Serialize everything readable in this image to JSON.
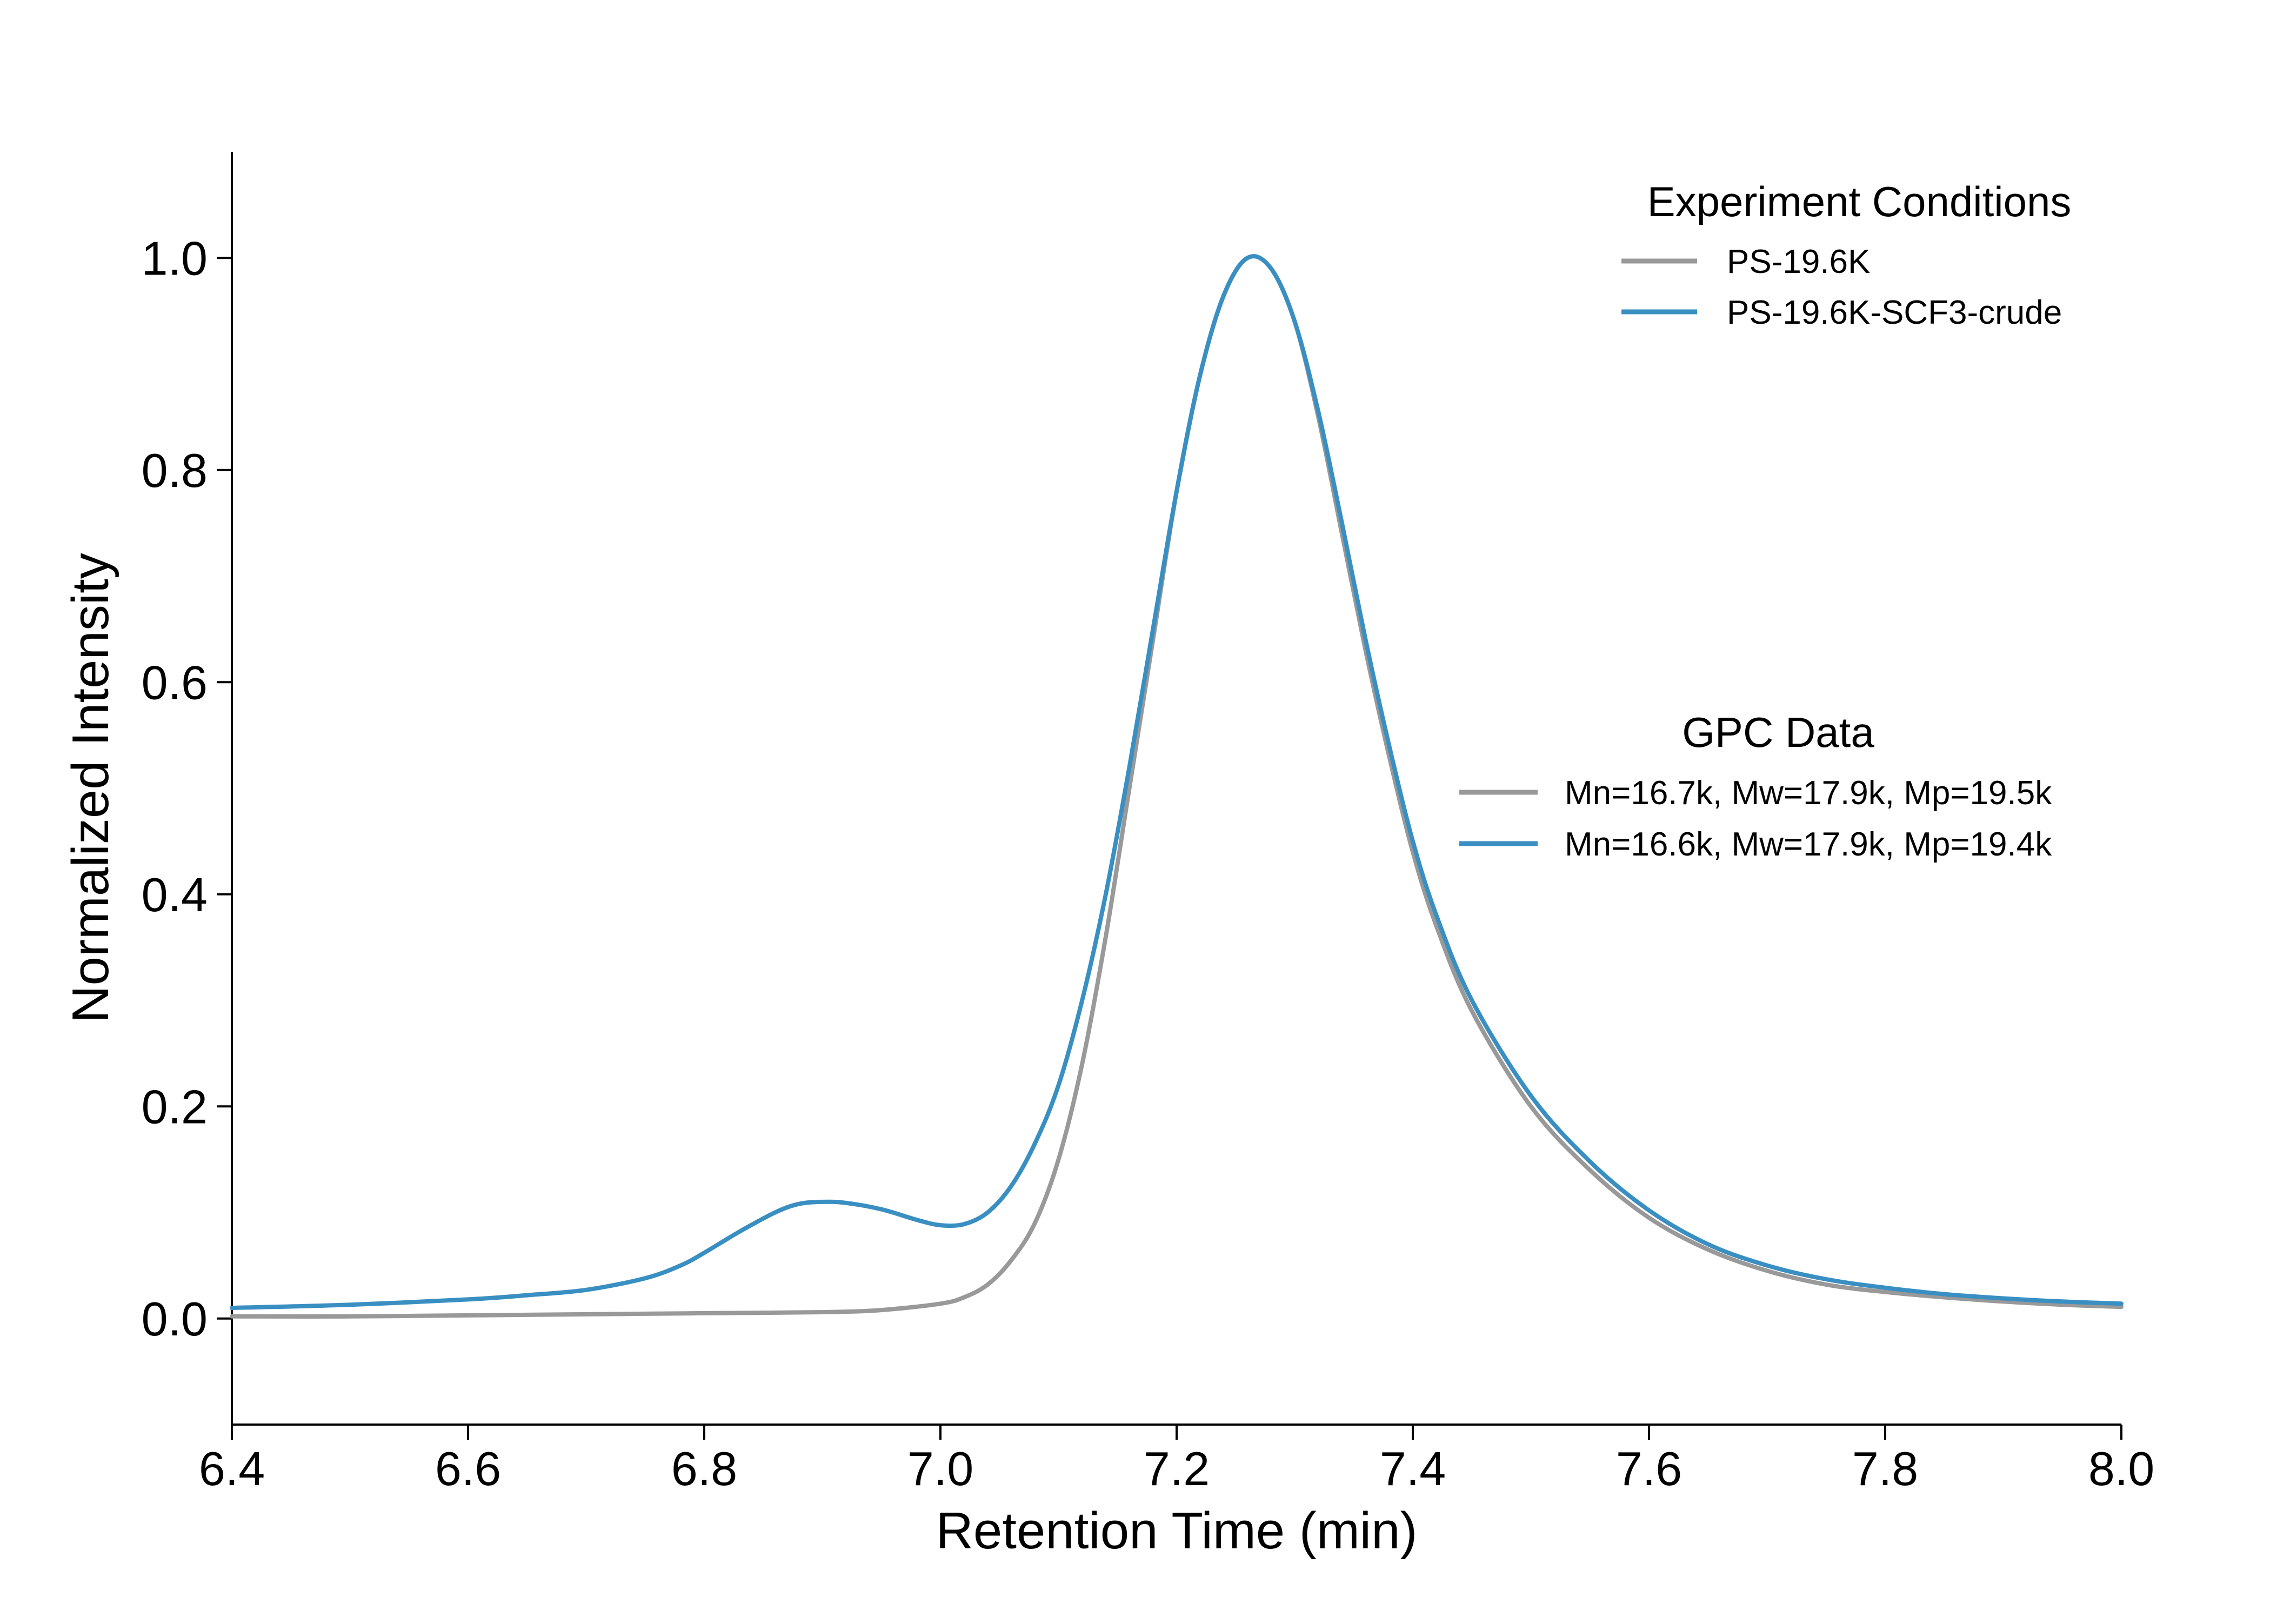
{
  "chart_data": {
    "type": "line",
    "title": "",
    "xlabel": "Retention Time (min)",
    "ylabel": "Normalized Intensity",
    "xlim": [
      6.4,
      8.0
    ],
    "ylim": [
      -0.1,
      1.1
    ],
    "grid": false,
    "x_ticks": [
      {
        "value": 6.4,
        "label": "6.4"
      },
      {
        "value": 6.6,
        "label": "6.6"
      },
      {
        "value": 6.8,
        "label": "6.8"
      },
      {
        "value": 7.0,
        "label": "7.0"
      },
      {
        "value": 7.2,
        "label": "7.2"
      },
      {
        "value": 7.4,
        "label": "7.4"
      },
      {
        "value": 7.6,
        "label": "7.6"
      },
      {
        "value": 7.8,
        "label": "7.8"
      },
      {
        "value": 8.0,
        "label": "8.0"
      }
    ],
    "y_ticks": [
      {
        "value": 0.0,
        "label": "0.0"
      },
      {
        "value": 0.2,
        "label": "0.2"
      },
      {
        "value": 0.4,
        "label": "0.4"
      },
      {
        "value": 0.6,
        "label": "0.6"
      },
      {
        "value": 0.8,
        "label": "0.8"
      },
      {
        "value": 1.0,
        "label": "1.0"
      }
    ],
    "series": [
      {
        "name": "PS-19.6K",
        "color": "#999999",
        "points": [
          [
            6.4,
            0.002
          ],
          [
            6.5,
            0.002
          ],
          [
            6.6,
            0.003
          ],
          [
            6.7,
            0.004
          ],
          [
            6.8,
            0.005
          ],
          [
            6.9,
            0.006
          ],
          [
            6.95,
            0.008
          ],
          [
            7.0,
            0.014
          ],
          [
            7.02,
            0.02
          ],
          [
            7.04,
            0.032
          ],
          [
            7.06,
            0.055
          ],
          [
            7.08,
            0.09
          ],
          [
            7.1,
            0.15
          ],
          [
            7.12,
            0.24
          ],
          [
            7.14,
            0.36
          ],
          [
            7.16,
            0.5
          ],
          [
            7.18,
            0.64
          ],
          [
            7.2,
            0.78
          ],
          [
            7.22,
            0.89
          ],
          [
            7.24,
            0.965
          ],
          [
            7.26,
            1.0
          ],
          [
            7.28,
            0.99
          ],
          [
            7.3,
            0.94
          ],
          [
            7.32,
            0.85
          ],
          [
            7.34,
            0.74
          ],
          [
            7.36,
            0.63
          ],
          [
            7.38,
            0.53
          ],
          [
            7.4,
            0.44
          ],
          [
            7.42,
            0.37
          ],
          [
            7.45,
            0.29
          ],
          [
            7.5,
            0.2
          ],
          [
            7.55,
            0.14
          ],
          [
            7.6,
            0.095
          ],
          [
            7.65,
            0.065
          ],
          [
            7.7,
            0.045
          ],
          [
            7.75,
            0.032
          ],
          [
            7.8,
            0.025
          ],
          [
            7.85,
            0.02
          ],
          [
            7.9,
            0.016
          ],
          [
            7.95,
            0.013
          ],
          [
            8.0,
            0.011
          ]
        ]
      },
      {
        "name": "PS-19.6K-SCF3-crude",
        "color": "#3a8fc2",
        "points": [
          [
            6.4,
            0.01
          ],
          [
            6.5,
            0.013
          ],
          [
            6.6,
            0.018
          ],
          [
            6.65,
            0.022
          ],
          [
            6.7,
            0.027
          ],
          [
            6.75,
            0.038
          ],
          [
            6.78,
            0.05
          ],
          [
            6.8,
            0.062
          ],
          [
            6.83,
            0.082
          ],
          [
            6.86,
            0.1
          ],
          [
            6.88,
            0.108
          ],
          [
            6.9,
            0.11
          ],
          [
            6.92,
            0.109
          ],
          [
            6.95,
            0.103
          ],
          [
            6.98,
            0.093
          ],
          [
            7.0,
            0.088
          ],
          [
            7.02,
            0.089
          ],
          [
            7.04,
            0.1
          ],
          [
            7.06,
            0.125
          ],
          [
            7.08,
            0.165
          ],
          [
            7.1,
            0.22
          ],
          [
            7.12,
            0.3
          ],
          [
            7.14,
            0.4
          ],
          [
            7.16,
            0.52
          ],
          [
            7.18,
            0.65
          ],
          [
            7.2,
            0.78
          ],
          [
            7.22,
            0.89
          ],
          [
            7.24,
            0.965
          ],
          [
            7.26,
            1.0
          ],
          [
            7.28,
            0.99
          ],
          [
            7.3,
            0.94
          ],
          [
            7.32,
            0.855
          ],
          [
            7.34,
            0.75
          ],
          [
            7.36,
            0.64
          ],
          [
            7.38,
            0.54
          ],
          [
            7.4,
            0.45
          ],
          [
            7.42,
            0.38
          ],
          [
            7.45,
            0.3
          ],
          [
            7.5,
            0.21
          ],
          [
            7.55,
            0.148
          ],
          [
            7.6,
            0.102
          ],
          [
            7.65,
            0.07
          ],
          [
            7.7,
            0.05
          ],
          [
            7.75,
            0.037
          ],
          [
            7.8,
            0.029
          ],
          [
            7.85,
            0.023
          ],
          [
            7.9,
            0.019
          ],
          [
            7.95,
            0.016
          ],
          [
            8.0,
            0.014
          ]
        ]
      }
    ],
    "legends": [
      {
        "title": "Experiment Conditions",
        "placement": "top-right",
        "entries": [
          {
            "label": "PS-19.6K",
            "color": "#999999"
          },
          {
            "label": "PS-19.6K-SCF3-crude",
            "color": "#3a8fc2"
          }
        ]
      },
      {
        "title": "GPC Data",
        "placement": "center-right",
        "entries": [
          {
            "label": "Mn=16.7k, Mw=17.9k, Mp=19.5k",
            "color": "#999999"
          },
          {
            "label": "Mn=16.6k, Mw=17.9k, Mp=19.4k",
            "color": "#3a8fc2"
          }
        ]
      }
    ]
  }
}
